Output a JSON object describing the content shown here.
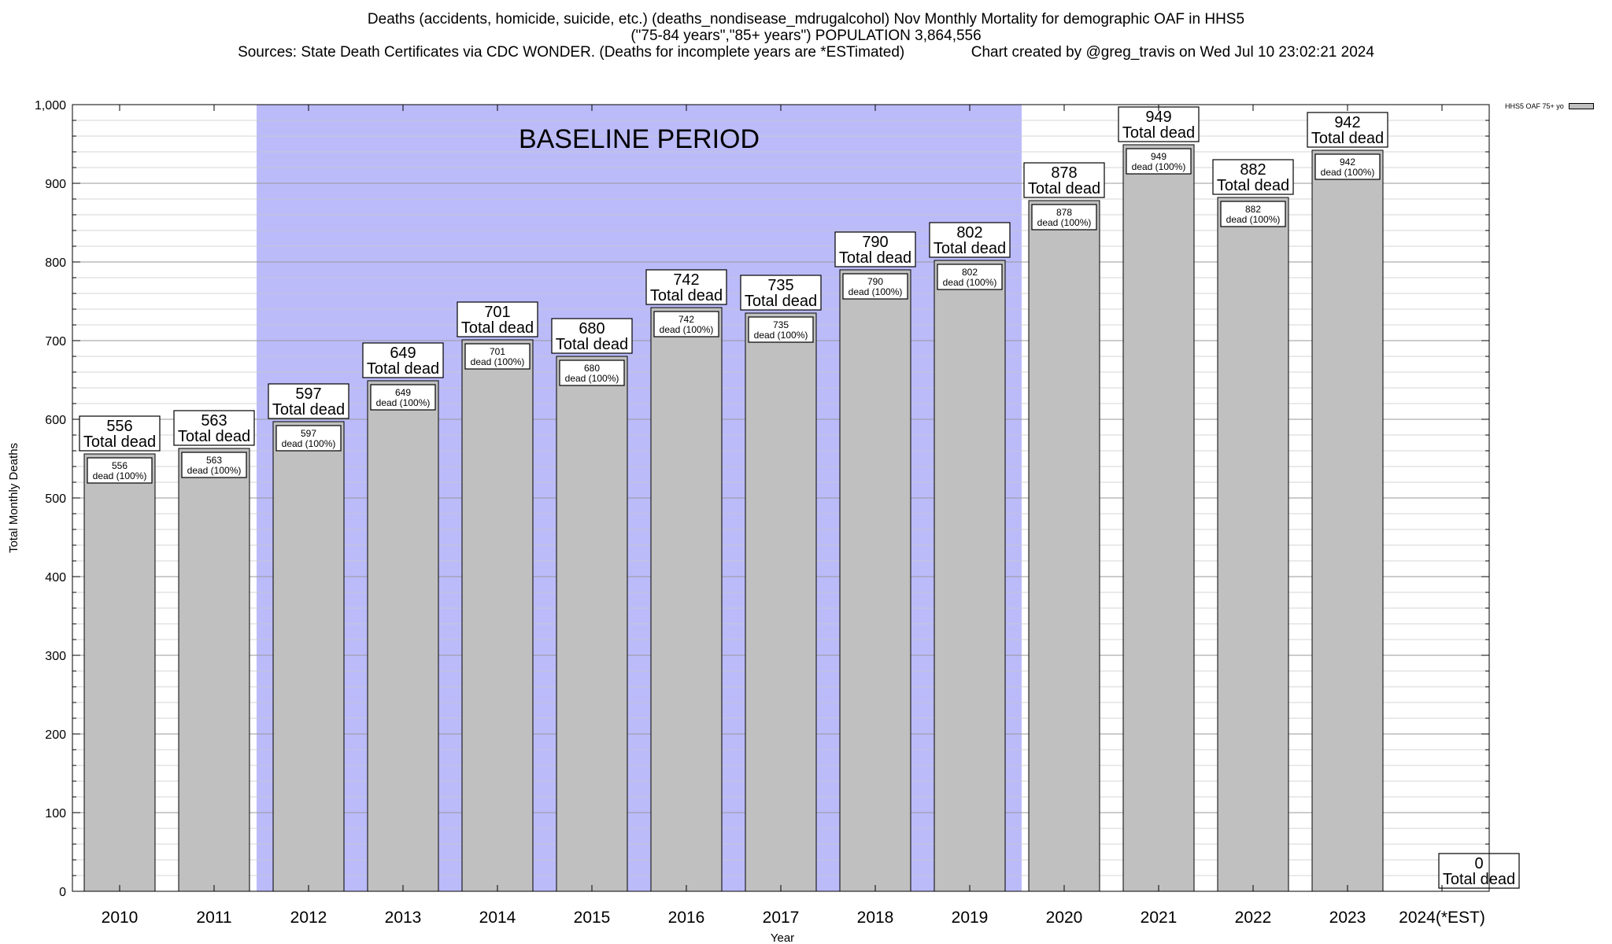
{
  "title_lines": [
    "Deaths (accidents, homicide, suicide, etc.) (deaths_nondisease_mdrugalcohol) Nov Monthly Mortality for demographic OAF in HHS5",
    "(\"75-84 years\",\"85+ years\") POPULATION 3,864,556",
    "Sources: State Death Certificates via CDC WONDER. (Deaths for incomplete years are *ESTimated)                Chart created by @greg_travis on Wed Jul 10 23:02:21 2024"
  ],
  "legend_label": "HHS5 OAF 75+ yo",
  "colors": {
    "bar": "#c0c0c0",
    "baseline_band": "#bbbbfa",
    "grid": "#c8c8c8"
  },
  "chart_data": {
    "type": "bar",
    "categories": [
      "2010",
      "2011",
      "2012",
      "2013",
      "2014",
      "2015",
      "2016",
      "2017",
      "2018",
      "2019",
      "2020",
      "2021",
      "2022",
      "2023",
      "2024(*EST)"
    ],
    "values": [
      556,
      563,
      597,
      649,
      701,
      680,
      742,
      735,
      790,
      802,
      878,
      949,
      882,
      942,
      0
    ],
    "series": [
      {
        "name": "HHS5 OAF 75+ yo",
        "values": [
          556,
          563,
          597,
          649,
          701,
          680,
          742,
          735,
          790,
          802,
          878,
          949,
          882,
          942,
          0
        ]
      }
    ],
    "xlabel": "Year",
    "ylabel": "Total Monthly Deaths",
    "ylim": [
      0,
      1000
    ],
    "yticks": [
      0,
      100,
      200,
      300,
      400,
      500,
      600,
      700,
      800,
      900,
      1000
    ],
    "ytick_labels": [
      "0",
      "100",
      "200",
      "300",
      "400",
      "500",
      "600",
      "700",
      "800",
      "900",
      "1,000"
    ],
    "grid": true,
    "legend_position": "top-right",
    "bar_label_text": "Total dead",
    "inner_label_text": "dead (100%)",
    "annotations": [
      {
        "text": "BASELINE PERIOD",
        "from": "2012",
        "to": "2019"
      }
    ]
  }
}
